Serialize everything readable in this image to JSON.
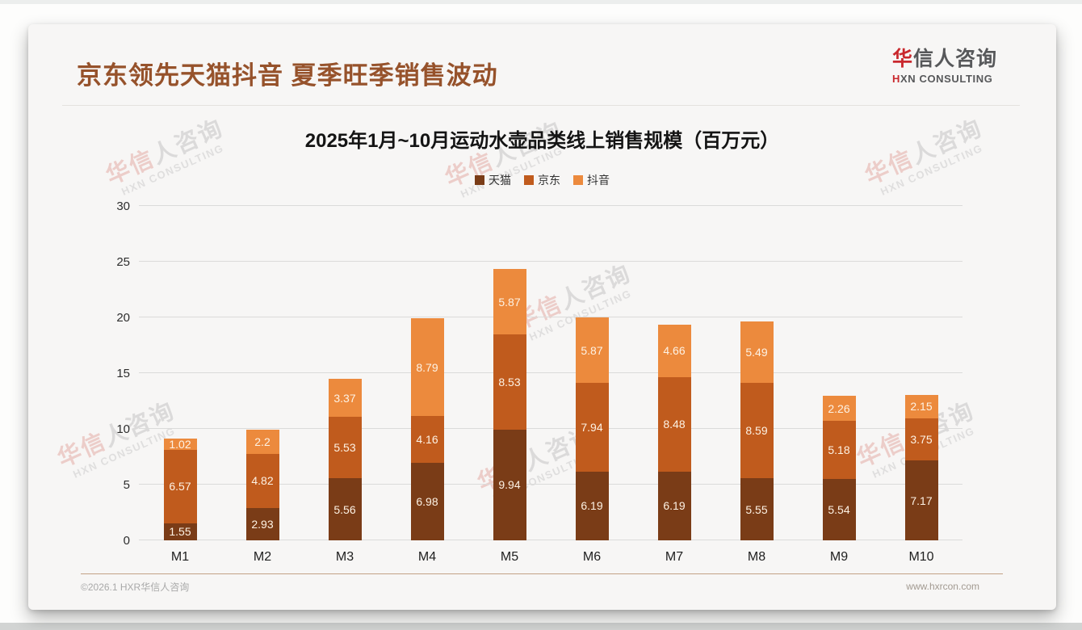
{
  "page": {
    "header": {
      "title": "京东领先天猫抖音 夏季旺季销售波动"
    },
    "logo": {
      "cn_first": "华",
      "cn_rest": "信人咨询",
      "en_first": "H",
      "en_rest": "XN CONSULTING"
    },
    "watermark": {
      "line1_accent": "华信",
      "line1_rest": "人咨询",
      "line2": "HXN CONSULTING"
    },
    "footer": {
      "left": "©2026.1 HXR华信人咨询",
      "right": "www.hxrcon.com"
    }
  },
  "chart_data": {
    "type": "bar",
    "stacked": true,
    "title": "2025年1月~10月运动水壶品类线上销售规模（百万元）",
    "categories": [
      "M1",
      "M2",
      "M3",
      "M4",
      "M5",
      "M6",
      "M7",
      "M8",
      "M9",
      "M10"
    ],
    "series": [
      {
        "name": "天猫",
        "color": "#7a3c17",
        "values": [
          1.55,
          2.93,
          5.56,
          6.98,
          9.94,
          6.19,
          6.19,
          5.55,
          5.54,
          7.17
        ]
      },
      {
        "name": "京东",
        "color": "#c05b1d",
        "values": [
          6.57,
          4.82,
          5.53,
          4.16,
          8.53,
          7.94,
          8.48,
          8.59,
          5.18,
          3.75
        ]
      },
      {
        "name": "抖音",
        "color": "#ec8a3d",
        "values": [
          1.02,
          2.2,
          3.37,
          8.79,
          5.87,
          5.87,
          4.66,
          5.49,
          2.26,
          2.15
        ]
      }
    ],
    "ylim": [
      0,
      30
    ],
    "yticks": [
      0,
      5,
      10,
      15,
      20,
      25,
      30
    ],
    "grid": true,
    "legend_position": "top",
    "value_labels": "inside",
    "label_color": "#fdf2e4"
  }
}
